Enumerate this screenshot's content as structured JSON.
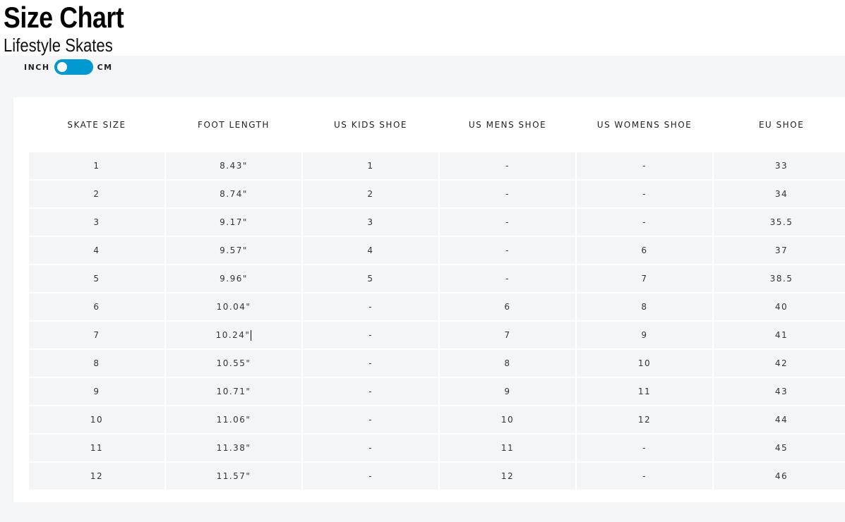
{
  "header": {
    "title": "Size Chart",
    "subtitle": "Lifestyle Skates"
  },
  "unit_toggle": {
    "left_label": "INCH",
    "right_label": "CM",
    "selected": "INCH",
    "accent": "#0099d0"
  },
  "table": {
    "columns": [
      "SKATE SIZE",
      "FOOT LENGTH",
      "US KIDS SHOE",
      "US MENS SHOE",
      "US WOMENS SHOE",
      "EU SHOE"
    ],
    "rows": [
      [
        "1",
        "8.43\"",
        "1",
        "-",
        "-",
        "33"
      ],
      [
        "2",
        "8.74\"",
        "2",
        "-",
        "-",
        "34"
      ],
      [
        "3",
        "9.17\"",
        "3",
        "-",
        "-",
        "35.5"
      ],
      [
        "4",
        "9.57\"",
        "4",
        "-",
        "6",
        "37"
      ],
      [
        "5",
        "9.96\"",
        "5",
        "-",
        "7",
        "38.5"
      ],
      [
        "6",
        "10.04\"",
        "-",
        "6",
        "8",
        "40"
      ],
      [
        "7",
        "10.24\"",
        "-",
        "7",
        "9",
        "41"
      ],
      [
        "8",
        "10.55\"",
        "-",
        "8",
        "10",
        "42"
      ],
      [
        "9",
        "10.71\"",
        "-",
        "9",
        "11",
        "43"
      ],
      [
        "10",
        "11.06\"",
        "-",
        "10",
        "12",
        "44"
      ],
      [
        "11",
        "11.38\"",
        "-",
        "11",
        "-",
        "45"
      ],
      [
        "12",
        "11.57\"",
        "-",
        "12",
        "-",
        "46"
      ]
    ]
  }
}
